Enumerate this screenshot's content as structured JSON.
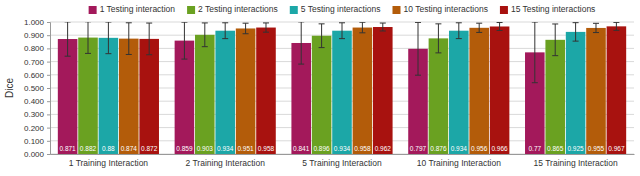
{
  "chart_data": {
    "type": "bar",
    "y_label": "Dice",
    "categories": [
      "1 Training Interaction",
      "2 Training Interaction",
      "5 Training Interaction",
      "10 Training Interaction",
      "15 Training Interaction"
    ],
    "series": [
      {
        "name": "1 Testing interaction",
        "color": "#a3195b",
        "values": [
          0.871,
          0.859,
          0.841,
          0.797,
          0.77
        ],
        "errors": [
          0.13,
          0.14,
          0.16,
          0.2,
          0.23
        ]
      },
      {
        "name": "2 Testing interactions",
        "color": "#6aa121",
        "values": [
          0.882,
          0.903,
          0.896,
          0.876,
          0.865
        ],
        "errors": [
          0.12,
          0.09,
          0.09,
          0.11,
          0.12
        ]
      },
      {
        "name": "5 Testing interactions",
        "color": "#1ca7a7",
        "values": [
          0.88,
          0.934,
          0.934,
          0.934,
          0.925
        ],
        "errors": [
          0.12,
          0.06,
          0.06,
          0.06,
          0.07
        ]
      },
      {
        "name": "10 Testing interactions",
        "color": "#b35c0a",
        "values": [
          0.874,
          0.951,
          0.958,
          0.956,
          0.955
        ],
        "errors": [
          0.12,
          0.04,
          0.04,
          0.035,
          0.035
        ]
      },
      {
        "name": "15 Testing interactions",
        "color": "#a8120f",
        "values": [
          0.872,
          0.958,
          0.962,
          0.966,
          0.967
        ],
        "errors": [
          0.12,
          0.035,
          0.03,
          0.03,
          0.03
        ]
      }
    ],
    "ylim": [
      0,
      1
    ],
    "yticks": [
      {
        "value": 0,
        "label": "0.000"
      },
      {
        "value": 0.1,
        "label": "0.100"
      },
      {
        "value": 0.2,
        "label": "0.200"
      },
      {
        "value": 0.3,
        "label": "0.300"
      },
      {
        "value": 0.4,
        "label": "0.400"
      },
      {
        "value": 0.5,
        "label": "0.500"
      },
      {
        "value": 0.6,
        "label": "0.600"
      },
      {
        "value": 0.7,
        "label": "0.700"
      },
      {
        "value": 0.8,
        "label": "0.800"
      },
      {
        "value": 0.9,
        "label": "0.900"
      },
      {
        "value": 1,
        "label": "1.000"
      }
    ],
    "grid": true,
    "legend": "top",
    "data_labels": true
  }
}
